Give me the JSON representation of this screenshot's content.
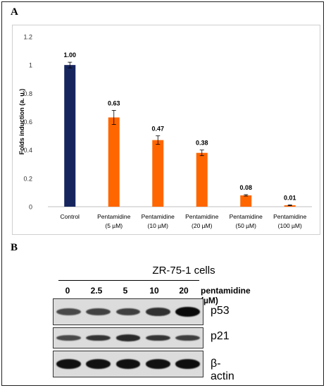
{
  "panel_a_label": "A",
  "panel_b_label": "B",
  "chart_data": {
    "type": "bar",
    "categories": [
      [
        "Control",
        ""
      ],
      [
        "Pentamidine",
        "(5 µM)"
      ],
      [
        "Pentamidine",
        "(10 µM)"
      ],
      [
        "Pentamidine",
        "(20 µM)"
      ],
      [
        "Pentamidine",
        "(50 µM)"
      ],
      [
        "Pentamidine",
        "(100 µM)"
      ]
    ],
    "values": [
      1.0,
      0.63,
      0.47,
      0.38,
      0.08,
      0.01
    ],
    "errors": [
      0.02,
      0.05,
      0.03,
      0.02,
      0.005,
      0.003
    ],
    "data_labels": [
      "1.00",
      "0.63",
      "0.47",
      "0.38",
      "0.08",
      "0.01"
    ],
    "bar_colors": [
      "#17255e",
      "#ff6600",
      "#ff6600",
      "#ff6600",
      "#ff6600",
      "#ff6600"
    ],
    "ylabel": "Folds induction (a. u.)",
    "xlabel": "",
    "ylim": [
      0,
      1.2
    ],
    "yticks": [
      "0",
      "0.2",
      "0.4",
      "0.6",
      "0.8",
      "1",
      "1.2"
    ],
    "ytick_values": [
      0,
      0.2,
      0.4,
      0.6,
      0.8,
      1.0,
      1.2
    ],
    "grid": false
  },
  "blot": {
    "cell_line": "ZR-75-1 cells",
    "treatment_label": "pentamidine (µM)",
    "lanes": [
      "0",
      "2.5",
      "5",
      "10",
      "20"
    ],
    "proteins": [
      {
        "name": "p53",
        "intensities": [
          0.55,
          0.6,
          0.62,
          0.72,
          1.0
        ]
      },
      {
        "name": "p21",
        "intensities": [
          0.55,
          0.7,
          0.78,
          0.7,
          0.62
        ]
      },
      {
        "name": "β-actin",
        "intensities": [
          0.95,
          0.95,
          0.95,
          0.95,
          0.97
        ]
      }
    ]
  }
}
